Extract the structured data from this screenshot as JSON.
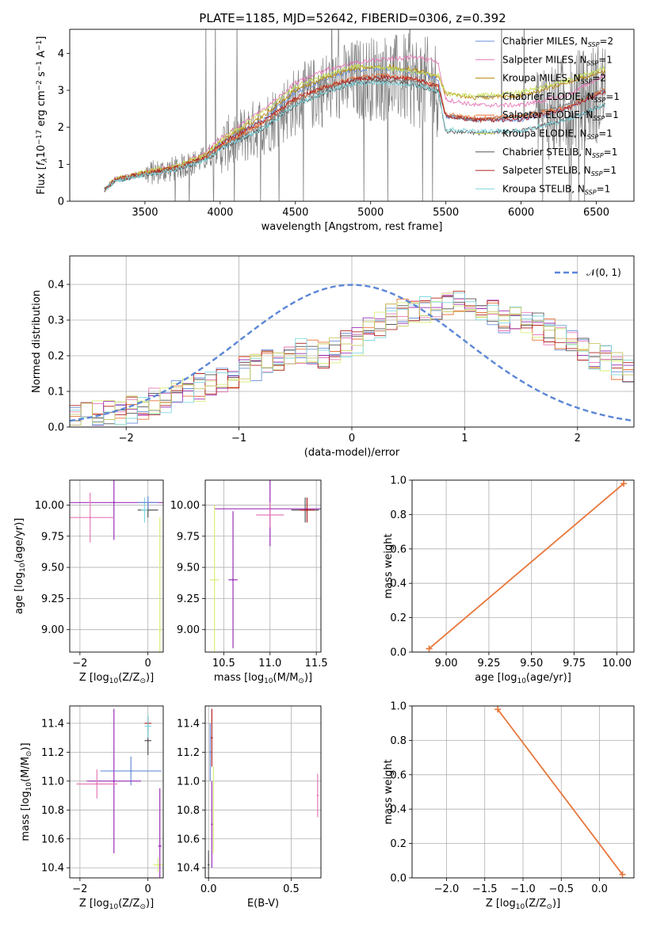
{
  "title": "PLATE=1185, MJD=52642, FIBERID=0306, z=0.392",
  "colors": {
    "data": "#808080",
    "models": [
      "#6a8fd8",
      "#e67ab7",
      "#b8860b",
      "#777777",
      "#e8763a",
      "#c8e05a",
      "#555555",
      "#b22222",
      "#7fd8e0"
    ],
    "hist": [
      "#6a8fd8",
      "#e67ab7",
      "#e8763a",
      "#555555",
      "#9b30b8",
      "#d9ef7a",
      "#b22222",
      "#7fd8e0",
      "#c8c86a"
    ],
    "gauss": "#5b86d6",
    "weight": "#e8763a"
  },
  "chart_data": [
    {
      "type": "line",
      "title": "PLATE=1185, MJD=52642, FIBERID=0306, z=0.392",
      "xlabel": "wavelength [Angstrom, rest frame]",
      "ylabel_parts": [
        "Flux [",
        "f",
        "λ",
        "10",
        "−17",
        " erg cm",
        "−2",
        " s",
        "−1",
        " A",
        "−1",
        "]"
      ],
      "xlim": [
        3000,
        6750
      ],
      "ylim": [
        0,
        4.65
      ],
      "xticks": [
        "3500",
        "4000",
        "4500",
        "5000",
        "5500",
        "6000",
        "6500"
      ],
      "yticks": [
        "0",
        "1",
        "2",
        "3",
        "4"
      ],
      "legend_position": "top-right",
      "legend": [
        {
          "base": "Chabrier MILES, N",
          "sub": "SSP",
          "tail": "=2"
        },
        {
          "base": "Salpeter MILES, N",
          "sub": "SSP",
          "tail": "=1"
        },
        {
          "base": "Kroupa MILES, N",
          "sub": "SSP",
          "tail": "=2"
        },
        {
          "base": "Chabrier ELODIE, N",
          "sub": "SSP",
          "tail": "=1"
        },
        {
          "base": "Salpeter ELODIE, N",
          "sub": "SSP",
          "tail": "=1"
        },
        {
          "base": "Kroupa ELODIE, N",
          "sub": "SSP",
          "tail": "=1"
        },
        {
          "base": "Chabrier STELIB, N",
          "sub": "SSP",
          "tail": "=1"
        },
        {
          "base": "Salpeter STELIB, N",
          "sub": "SSP",
          "tail": "=1"
        },
        {
          "base": "Kroupa STELIB, N",
          "sub": "SSP",
          "tail": "=1"
        }
      ],
      "model_anchor_x": [
        3230,
        3300,
        3500,
        3700,
        3900,
        4000,
        4300,
        4500,
        4700,
        4900,
        5100,
        5300,
        5450,
        5500,
        5700,
        6000,
        6300,
        6550
      ],
      "series": [
        {
          "y": [
            0.3,
            0.6,
            0.78,
            0.92,
            1.2,
            1.55,
            2.25,
            2.95,
            3.3,
            3.55,
            3.6,
            3.5,
            3.3,
            2.3,
            2.2,
            2.2,
            2.5,
            3.0
          ]
        },
        {
          "y": [
            0.3,
            0.6,
            0.78,
            0.95,
            1.3,
            1.7,
            2.5,
            3.2,
            3.55,
            3.75,
            3.85,
            3.9,
            3.75,
            2.75,
            2.6,
            2.6,
            2.85,
            3.4
          ]
        },
        {
          "y": [
            0.3,
            0.6,
            0.78,
            0.92,
            1.25,
            1.6,
            2.35,
            3.0,
            3.35,
            3.6,
            3.65,
            3.55,
            3.35,
            2.9,
            2.8,
            2.85,
            3.2,
            3.5
          ]
        },
        {
          "y": [
            0.3,
            0.55,
            0.74,
            0.88,
            1.15,
            1.45,
            2.1,
            2.7,
            3.05,
            3.3,
            3.35,
            3.25,
            3.05,
            2.3,
            2.2,
            2.3,
            2.6,
            3.0
          ]
        },
        {
          "y": [
            0.3,
            0.58,
            0.76,
            0.9,
            1.18,
            1.5,
            2.15,
            2.75,
            3.1,
            3.35,
            3.4,
            3.3,
            3.1,
            2.35,
            2.25,
            2.3,
            2.55,
            3.0
          ]
        },
        {
          "y": [
            0.3,
            0.6,
            0.8,
            0.95,
            1.25,
            1.65,
            2.45,
            3.1,
            3.4,
            3.65,
            3.6,
            3.5,
            3.4,
            2.9,
            2.85,
            2.95,
            3.25,
            3.6
          ]
        },
        {
          "y": [
            0.3,
            0.55,
            0.72,
            0.85,
            1.1,
            1.4,
            2.0,
            2.6,
            2.95,
            3.2,
            3.25,
            3.15,
            2.95,
            1.9,
            1.85,
            1.9,
            2.2,
            2.6
          ]
        },
        {
          "y": [
            0.3,
            0.58,
            0.76,
            0.9,
            1.18,
            1.55,
            2.2,
            2.8,
            3.1,
            3.3,
            3.35,
            3.3,
            3.1,
            2.3,
            2.2,
            2.2,
            2.5,
            2.95
          ]
        },
        {
          "y": [
            0.3,
            0.55,
            0.72,
            0.85,
            1.1,
            1.4,
            2.0,
            2.6,
            2.95,
            3.2,
            3.2,
            3.15,
            2.95,
            1.95,
            1.9,
            1.9,
            2.2,
            2.6
          ]
        }
      ]
    },
    {
      "type": "line",
      "xlabel": "(data-model)/error",
      "ylabel": "Normed distribution",
      "xlim": [
        -2.5,
        2.5
      ],
      "ylim": [
        0,
        0.48
      ],
      "xticks": [
        "−2",
        "−1",
        "0",
        "1",
        "2"
      ],
      "yticks": [
        "0.0",
        "0.1",
        "0.2",
        "0.3",
        "0.4"
      ],
      "legend_position": "top-right",
      "legend": [
        "𝒩(0, 1)"
      ],
      "bin_edges": [
        -2.5,
        2.5
      ],
      "bin_count": 50,
      "base_hist": [
        0.03,
        0.03,
        0.035,
        0.04,
        0.045,
        0.05,
        0.06,
        0.07,
        0.08,
        0.09,
        0.1,
        0.11,
        0.12,
        0.13,
        0.14,
        0.16,
        0.17,
        0.18,
        0.19,
        0.2,
        0.21,
        0.21,
        0.2,
        0.22,
        0.23,
        0.24,
        0.27,
        0.29,
        0.31,
        0.32,
        0.33,
        0.33,
        0.34,
        0.34,
        0.35,
        0.33,
        0.33,
        0.32,
        0.3,
        0.3,
        0.29,
        0.28,
        0.27,
        0.25,
        0.24,
        0.22,
        0.2,
        0.19,
        0.17,
        0.15
      ],
      "gaussian": {
        "mu": 0,
        "sigma": 1
      }
    },
    {
      "type": "scatter",
      "xlabel_parts": [
        "Z [log",
        "10",
        "(Z/Z",
        "⊙",
        ")]"
      ],
      "ylabel_parts": [
        "age  [log",
        "10",
        "(age/yr)]"
      ],
      "xlim": [
        -2.3,
        0.45
      ],
      "ylim": [
        8.82,
        10.2
      ],
      "xticks": [
        "−2",
        "0"
      ],
      "yticks": [
        "9.00",
        "9.25",
        "9.50",
        "9.75",
        "10.00"
      ],
      "points": [
        {
          "x": 0.0,
          "y": 9.96,
          "xerr": 0.3,
          "yerr": 0.06,
          "c": 3
        },
        {
          "x": -1.0,
          "y": 10.02,
          "xerr": 1.5,
          "yerr": 0.3,
          "c": 4
        },
        {
          "x": -1.7,
          "y": 9.9,
          "xerr": 0.7,
          "yerr": 0.2,
          "c": 1
        },
        {
          "x": -0.1,
          "y": 9.96,
          "xerr": 0.1,
          "yerr": 0.1,
          "c": 7
        },
        {
          "x": 0.35,
          "y": 9.0,
          "xerr": 0.05,
          "yerr": 0.9,
          "c": 5
        },
        {
          "x": 0.0,
          "y": 10.02,
          "xerr": 0.3,
          "yerr": 0.05,
          "c": 0
        }
      ]
    },
    {
      "type": "scatter",
      "xlabel_parts": [
        "mass [log",
        "10",
        "(M/M",
        "⊙",
        ")]"
      ],
      "ylabel": "",
      "xlim": [
        10.3,
        11.55
      ],
      "ylim": [
        8.82,
        10.2
      ],
      "xticks": [
        "10.5",
        "11.0",
        "11.5"
      ],
      "yticks": [
        "9.00",
        "9.25",
        "9.50",
        "9.75",
        "10.00"
      ],
      "points": [
        {
          "x": 11.38,
          "y": 9.96,
          "xerr": 0.15,
          "yerr": 0.1,
          "c": 3
        },
        {
          "x": 11.0,
          "y": 9.97,
          "xerr": 0.6,
          "yerr": 0.3,
          "c": 4
        },
        {
          "x": 10.4,
          "y": 9.4,
          "xerr": 0.05,
          "yerr": 0.6,
          "c": 5
        },
        {
          "x": 10.6,
          "y": 9.4,
          "xerr": 0.05,
          "yerr": 0.55,
          "c": 4
        },
        {
          "x": 11.4,
          "y": 9.96,
          "xerr": 0.08,
          "yerr": 0.1,
          "c": 6
        },
        {
          "x": 11.0,
          "y": 9.92,
          "xerr": 0.15,
          "yerr": 0.1,
          "c": 1
        }
      ]
    },
    {
      "type": "line",
      "xlabel_parts": [
        "age  [log",
        "10",
        "(age/yr)]"
      ],
      "ylabel": "mass weight",
      "xlim": [
        8.8,
        10.1
      ],
      "ylim": [
        0,
        1.0
      ],
      "xticks": [
        "9.00",
        "9.25",
        "9.50",
        "9.75",
        "10.00"
      ],
      "yticks": [
        "0.0",
        "0.2",
        "0.4",
        "0.6",
        "0.8",
        "1.0"
      ],
      "series": [
        {
          "x": [
            8.9,
            10.04
          ],
          "y": [
            0.02,
            0.98
          ]
        }
      ]
    },
    {
      "type": "scatter",
      "xlabel_parts": [
        "Z [log",
        "10",
        "(Z/Z",
        "⊙",
        ")]"
      ],
      "ylabel_parts": [
        "mass [log",
        "10",
        "(M/M",
        "⊙",
        ")]"
      ],
      "xlim": [
        -2.3,
        0.45
      ],
      "ylim": [
        10.33,
        11.52
      ],
      "xticks": [
        "−2",
        "0"
      ],
      "yticks": [
        "10.4",
        "10.6",
        "10.8",
        "11.0",
        "11.2",
        "11.4"
      ],
      "points": [
        {
          "x": -0.5,
          "y": 11.07,
          "xerr": 0.9,
          "yerr": 0.1,
          "c": 0
        },
        {
          "x": -1.0,
          "y": 11.0,
          "xerr": 0.8,
          "yerr": 0.5,
          "c": 4
        },
        {
          "x": -1.5,
          "y": 10.98,
          "xerr": 0.6,
          "yerr": 0.1,
          "c": 1
        },
        {
          "x": 0.0,
          "y": 11.4,
          "xerr": 0.1,
          "yerr": 0.05,
          "c": 6
        },
        {
          "x": 0.0,
          "y": 11.28,
          "xerr": 0.1,
          "yerr": 0.1,
          "c": 3
        },
        {
          "x": 0.3,
          "y": 10.42,
          "xerr": 0.15,
          "yerr": 0.05,
          "c": 5
        },
        {
          "x": 0.35,
          "y": 10.55,
          "xerr": 0.05,
          "yerr": 0.4,
          "c": 4
        },
        {
          "x": 0.0,
          "y": 11.38,
          "xerr": 0.1,
          "yerr": 0.08,
          "c": 7
        }
      ]
    },
    {
      "type": "scatter",
      "xlabel": "E(B-V)",
      "ylabel": "",
      "xlim": [
        -0.02,
        0.68
      ],
      "ylim": [
        10.33,
        11.52
      ],
      "xticks": [
        "0.0",
        "0.5"
      ],
      "yticks": [
        "10.4",
        "10.6",
        "10.8",
        "11.0",
        "11.2",
        "11.4"
      ],
      "points": [
        {
          "x": 0.02,
          "y": 11.3,
          "xerr": 0.0,
          "yerr": 0.2,
          "c": 6
        },
        {
          "x": 0.01,
          "y": 11.2,
          "xerr": 0.0,
          "yerr": 0.2,
          "c": 0
        },
        {
          "x": 0.02,
          "y": 10.7,
          "xerr": 0.0,
          "yerr": 0.3,
          "c": 4
        },
        {
          "x": 0.03,
          "y": 10.8,
          "xerr": 0.0,
          "yerr": 0.3,
          "c": 5
        },
        {
          "x": 0.66,
          "y": 10.9,
          "xerr": 0.0,
          "yerr": 0.15,
          "c": 1
        },
        {
          "x": 0.0,
          "y": 10.42,
          "xerr": 0.0,
          "yerr": 0.1,
          "c": 3
        }
      ]
    },
    {
      "type": "line",
      "xlabel_parts": [
        "Z [log",
        "10",
        "(Z/Z",
        "⊙",
        ")]"
      ],
      "ylabel": "mass weight",
      "xlim": [
        -2.45,
        0.45
      ],
      "ylim": [
        0,
        1.0
      ],
      "xticks": [
        "−2.0",
        "−1.5",
        "−1.0",
        "−0.5",
        "0.0"
      ],
      "yticks": [
        "0.0",
        "0.2",
        "0.4",
        "0.6",
        "0.8",
        "1.0"
      ],
      "series": [
        {
          "x": [
            -1.33,
            0.3
          ],
          "y": [
            0.98,
            0.02
          ]
        }
      ]
    }
  ]
}
